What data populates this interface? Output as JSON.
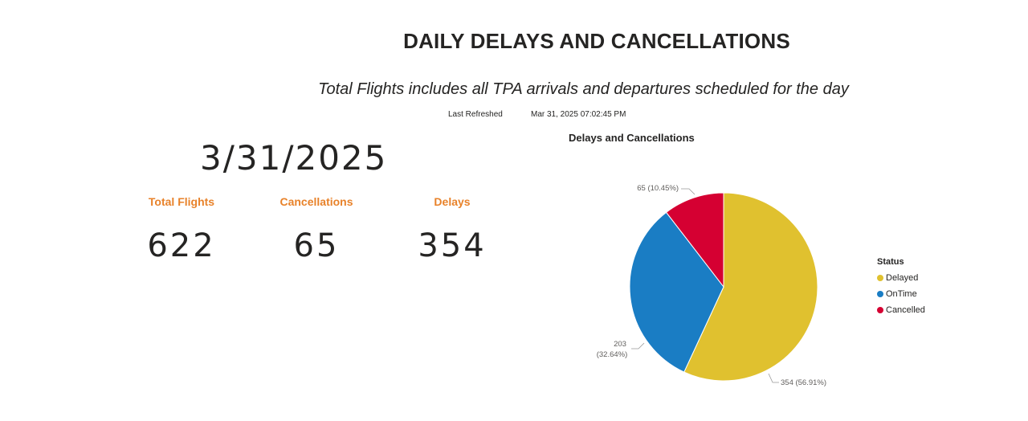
{
  "header": {
    "title": "DAILY DELAYS AND CANCELLATIONS",
    "subtitle": "Total Flights includes all TPA arrivals and departures scheduled for the day",
    "last_refreshed_label": "Last Refreshed",
    "last_refreshed_value": "Mar 31, 2025 07:02:45 PM"
  },
  "date": "3/31/2025",
  "kpis": [
    {
      "label": "Total Flights",
      "value": "622"
    },
    {
      "label": "Cancellations",
      "value": "65"
    },
    {
      "label": "Delays",
      "value": "354"
    }
  ],
  "chart_data": {
    "type": "pie",
    "title": "Delays and Cancellations",
    "legend_title": "Status",
    "legend_position": "right",
    "slices": [
      {
        "name": "Delayed",
        "value": 354,
        "percent": "56.91%",
        "color": "#e0c12f",
        "label": "354 (56.91%)"
      },
      {
        "name": "OnTime",
        "value": 203,
        "percent": "32.64%",
        "color": "#1a7dc4",
        "label_line1": "203",
        "label_line2": "(32.64%)"
      },
      {
        "name": "Cancelled",
        "value": 65,
        "percent": "10.45%",
        "color": "#d50032",
        "label": "65 (10.45%)"
      }
    ]
  }
}
